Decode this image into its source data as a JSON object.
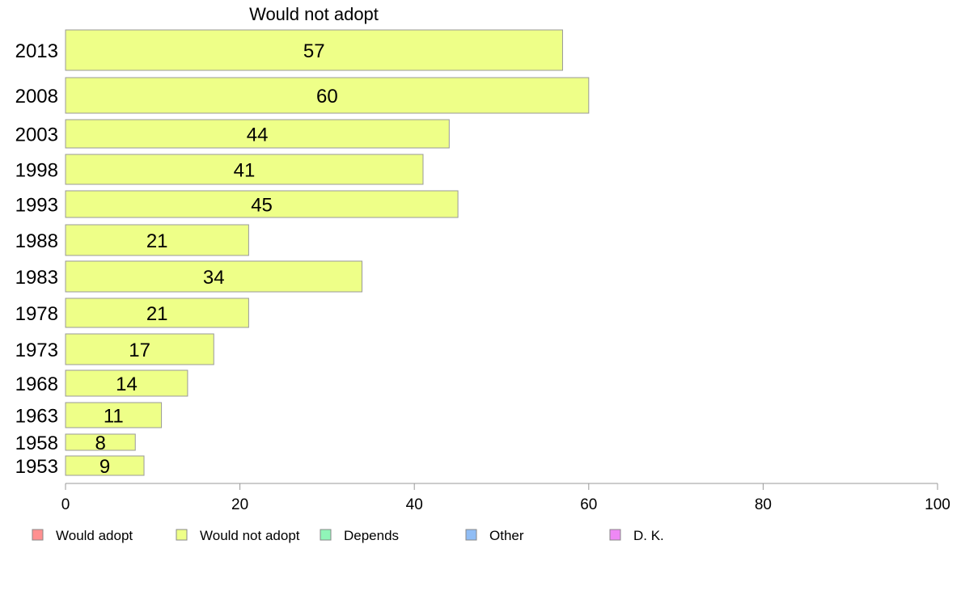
{
  "chart_data": {
    "type": "bar",
    "orientation": "horizontal",
    "title": "Would not adopt",
    "xlabel": "",
    "ylabel": "",
    "xlim": [
      0,
      100
    ],
    "xticks": [
      0,
      20,
      40,
      60,
      80,
      100
    ],
    "grid": false,
    "legend_position": "bottom",
    "series_color": "#EEFF88",
    "categories": [
      "2013",
      "2008",
      "2003",
      "1998",
      "1993",
      "1988",
      "1983",
      "1978",
      "1973",
      "1968",
      "1963",
      "1958",
      "1953"
    ],
    "values": [
      57,
      60,
      44,
      41,
      45,
      21,
      34,
      21,
      17,
      14,
      11,
      8,
      9
    ],
    "legend": [
      {
        "label": "Would adopt",
        "color": "#FF9090"
      },
      {
        "label": "Would not adopt",
        "color": "#EEFF88"
      },
      {
        "label": "Depends",
        "color": "#90F5B8"
      },
      {
        "label": "Other",
        "color": "#90BDF5"
      },
      {
        "label": "D. K.",
        "color": "#EE88F5"
      }
    ]
  }
}
